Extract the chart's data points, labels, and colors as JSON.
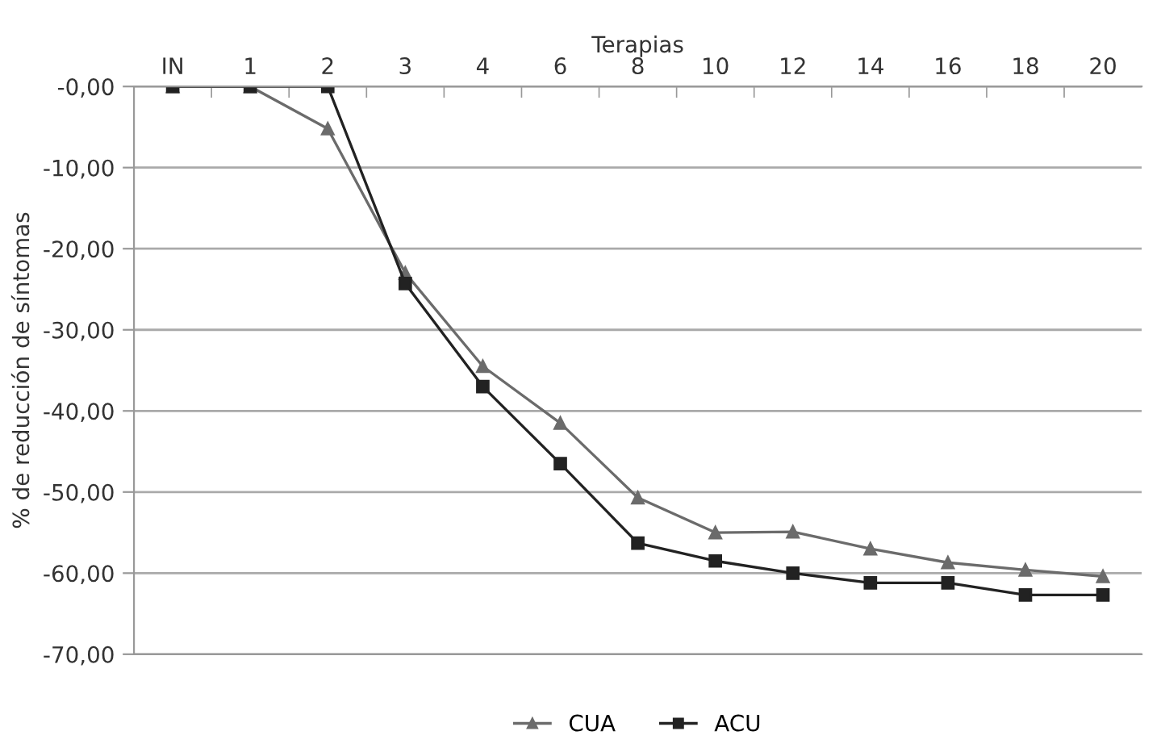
{
  "chart_data": {
    "type": "line",
    "xlabel": "Terapias",
    "ylabel": "% de reducción de síntomas",
    "categories": [
      "IN",
      "1",
      "2",
      "3",
      "4",
      "6",
      "8",
      "10",
      "12",
      "14",
      "16",
      "18",
      "20"
    ],
    "series": [
      {
        "name": "CUA",
        "color": "#6b6b6b",
        "marker": "triangle",
        "values": [
          0,
          0,
          -5.2,
          -23,
          -34.5,
          -41.5,
          -50.7,
          -55,
          -54.9,
          -57,
          -58.7,
          -59.6,
          -60.4
        ]
      },
      {
        "name": "ACU",
        "color": "#222222",
        "marker": "square",
        "values": [
          0,
          0,
          0,
          -24.3,
          -37,
          -46.5,
          -56.3,
          -58.5,
          -60,
          -61.2,
          -61.2,
          -62.7,
          -62.7
        ]
      }
    ],
    "ylim": [
      -70,
      0
    ],
    "yticks": [
      {
        "value": 0,
        "label": "-0,00"
      },
      {
        "value": -10,
        "label": "-10,00"
      },
      {
        "value": -20,
        "label": "-20,00"
      },
      {
        "value": -30,
        "label": "-30,00"
      },
      {
        "value": -40,
        "label": "-40,00"
      },
      {
        "value": -50,
        "label": "-50,00"
      },
      {
        "value": -60,
        "label": "-60,00"
      },
      {
        "value": -70,
        "label": "-70,00"
      }
    ],
    "grid": "y",
    "legend": "bottom",
    "line_style": "solid"
  }
}
